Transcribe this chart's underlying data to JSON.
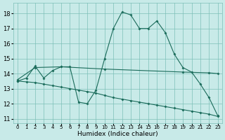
{
  "xlabel": "Humidex (Indice chaleur)",
  "xlim": [
    -0.5,
    23.5
  ],
  "ylim": [
    10.7,
    18.7
  ],
  "yticks": [
    11,
    12,
    13,
    14,
    15,
    16,
    17,
    18
  ],
  "xticks": [
    0,
    1,
    2,
    3,
    4,
    5,
    6,
    7,
    8,
    9,
    10,
    11,
    12,
    13,
    14,
    15,
    16,
    17,
    18,
    19,
    20,
    21,
    22,
    23
  ],
  "bg_color": "#c8eae8",
  "grid_color": "#7dbfb8",
  "line_color": "#1a6b5a",
  "series1_x": [
    0,
    1,
    2,
    3,
    4,
    5,
    6,
    7,
    8,
    9,
    10,
    11,
    12,
    13,
    14,
    15,
    16,
    17,
    18,
    19,
    20,
    21,
    22,
    23
  ],
  "series1_y": [
    13.5,
    13.7,
    14.5,
    13.7,
    14.2,
    14.45,
    14.45,
    12.1,
    12.0,
    12.9,
    15.0,
    17.0,
    18.1,
    17.9,
    17.0,
    17.0,
    17.5,
    16.7,
    15.3,
    14.4,
    14.1,
    13.3,
    12.4,
    11.2
  ],
  "series2_x": [
    0,
    2,
    5,
    10,
    19,
    22,
    23
  ],
  "series2_y": [
    13.6,
    14.4,
    14.45,
    14.3,
    14.1,
    14.05,
    14.0
  ],
  "series3_x": [
    0,
    1,
    2,
    3,
    4,
    5,
    6,
    7,
    8,
    9,
    10,
    11,
    12,
    13,
    14,
    15,
    16,
    17,
    18,
    19,
    20,
    21,
    22,
    23
  ],
  "series3_y": [
    13.5,
    13.45,
    13.4,
    13.3,
    13.2,
    13.1,
    13.0,
    12.9,
    12.8,
    12.7,
    12.55,
    12.4,
    12.3,
    12.2,
    12.1,
    12.0,
    11.9,
    11.8,
    11.7,
    11.6,
    11.5,
    11.4,
    11.3,
    11.15
  ]
}
